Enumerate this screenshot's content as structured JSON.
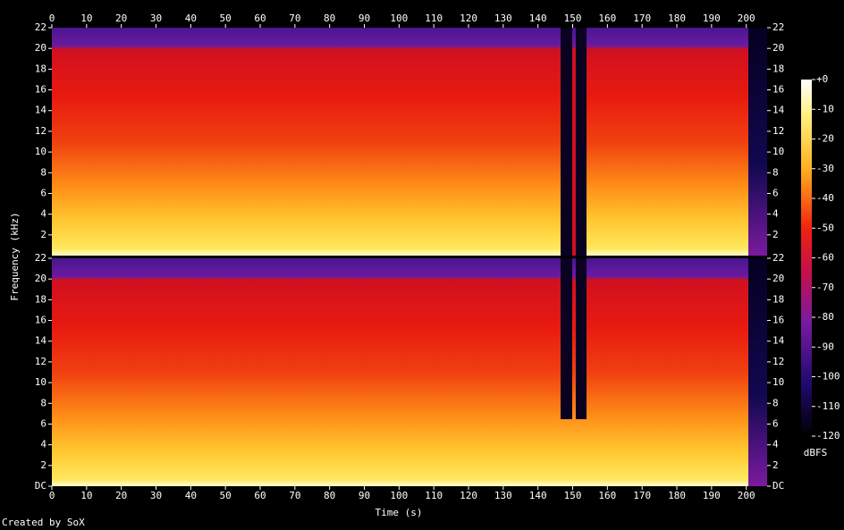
{
  "chart_data": {
    "type": "spectrogram",
    "x_label": "Time (s)",
    "y_label": "Frequency (kHz)",
    "footer": "Created by SoX",
    "xlim": [
      0,
      206
    ],
    "xticks": [
      0,
      10,
      20,
      30,
      40,
      50,
      60,
      70,
      80,
      90,
      100,
      110,
      120,
      130,
      140,
      150,
      160,
      170,
      180,
      190,
      200
    ],
    "channels": [
      {
        "ylim": [
          0,
          22
        ],
        "yticks": [
          2,
          4,
          6,
          8,
          10,
          12,
          14,
          16,
          18,
          20,
          22
        ]
      },
      {
        "ylim": [
          0,
          22
        ],
        "yticks": [
          {
            "value": 0,
            "label": "DC"
          },
          2,
          4,
          6,
          8,
          10,
          12,
          14,
          16,
          18,
          20,
          22
        ]
      }
    ],
    "colorbar": {
      "label": "dBFS",
      "lim": [
        -120,
        0
      ],
      "ticks": [
        {
          "value": 0,
          "label": "+0"
        },
        -10,
        -20,
        -30,
        -40,
        -50,
        -60,
        -70,
        -80,
        -90,
        -100,
        -110,
        -120
      ]
    }
  }
}
